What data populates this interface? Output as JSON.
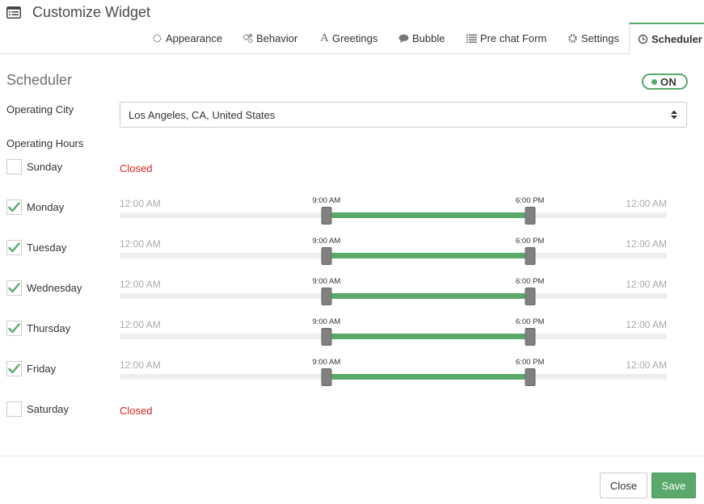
{
  "header": {
    "title": "Customize Widget",
    "icon": "list-window-icon"
  },
  "tabs": [
    {
      "label": "Appearance",
      "icon": "sun-icon",
      "active": false
    },
    {
      "label": "Behavior",
      "icon": "gears-icon",
      "active": false
    },
    {
      "label": "Greetings",
      "icon": "font-icon",
      "active": false
    },
    {
      "label": "Bubble",
      "icon": "speech-bubble-icon",
      "active": false
    },
    {
      "label": "Pre chat Form",
      "icon": "list-icon",
      "active": false
    },
    {
      "label": "Settings",
      "icon": "gear-icon",
      "active": false
    },
    {
      "label": "Scheduler",
      "icon": "clock-icon",
      "active": true
    }
  ],
  "scheduler": {
    "title": "Scheduler",
    "toggle_label": "ON",
    "toggle_on": true,
    "operating_city_label": "Operating City",
    "operating_city_value": "Los Angeles, CA, United States",
    "operating_hours_label": "Operating Hours",
    "days": [
      {
        "name": "Sunday",
        "checked": false,
        "status": "Closed"
      },
      {
        "name": "Monday",
        "checked": true,
        "min": "12:00 AM",
        "max": "12:00 AM",
        "start": "9:00 AM",
        "end": "6:00 PM",
        "start_hour": 9,
        "end_hour": 18
      },
      {
        "name": "Tuesday",
        "checked": true,
        "min": "12:00 AM",
        "max": "12:00 AM",
        "start": "9:00 AM",
        "end": "6:00 PM",
        "start_hour": 9,
        "end_hour": 18
      },
      {
        "name": "Wednesday",
        "checked": true,
        "min": "12:00 AM",
        "max": "12:00 AM",
        "start": "9:00 AM",
        "end": "6:00 PM",
        "start_hour": 9,
        "end_hour": 18
      },
      {
        "name": "Thursday",
        "checked": true,
        "min": "12:00 AM",
        "max": "12:00 AM",
        "start": "9:00 AM",
        "end": "6:00 PM",
        "start_hour": 9,
        "end_hour": 18
      },
      {
        "name": "Friday",
        "checked": true,
        "min": "12:00 AM",
        "max": "12:00 AM",
        "start": "9:00 AM",
        "end": "6:00 PM",
        "start_hour": 9,
        "end_hour": 18
      },
      {
        "name": "Saturday",
        "checked": false,
        "status": "Closed"
      }
    ]
  },
  "footer": {
    "close_label": "Close",
    "save_label": "Save"
  },
  "colors": {
    "accent": "#5aa96b",
    "closed": "#e02020",
    "track": "#eeeeee",
    "handle": "#808080"
  }
}
